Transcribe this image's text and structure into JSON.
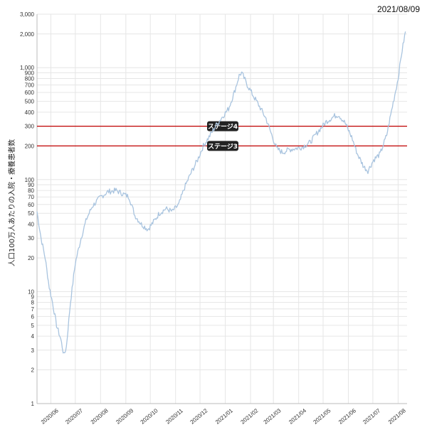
{
  "header": {
    "date": "2021/08/09"
  },
  "chart_data": {
    "type": "line",
    "ylabel": "人口100万人あたりの入院・療養患者数",
    "y_scale": "log",
    "ylim": [
      1,
      3000
    ],
    "y_ticks": [
      1,
      2,
      3,
      4,
      5,
      6,
      7,
      8,
      9,
      10,
      20,
      30,
      40,
      50,
      60,
      70,
      80,
      90,
      100,
      200,
      300,
      400,
      500,
      600,
      700,
      800,
      900,
      1000,
      2000,
      3000
    ],
    "y_tick_labels": [
      "1",
      "2",
      "3",
      "4",
      "5",
      "6",
      "7",
      "8",
      "9",
      "10",
      "20",
      "30",
      "40",
      "50",
      "60",
      "70",
      "80",
      "90",
      "100",
      "200",
      "300",
      "400",
      "500",
      "600",
      "700",
      "800",
      "900",
      "1,000",
      "2,000",
      "3,000"
    ],
    "x_range": [
      "2020-05-15",
      "2021-08-12"
    ],
    "x_ticks": [
      "2020-06-01",
      "2020-07-01",
      "2020-08-01",
      "2020-09-01",
      "2020-10-01",
      "2020-11-01",
      "2020-12-01",
      "2021-01-01",
      "2021-02-01",
      "2021-03-01",
      "2021-04-01",
      "2021-05-01",
      "2021-06-01",
      "2021-07-01",
      "2021-08-01"
    ],
    "x_tick_labels": [
      "2020/06",
      "2020/07",
      "2020/08",
      "2020/09",
      "2020/10",
      "2020/11",
      "2020/12",
      "2021/01",
      "2021/02",
      "2021/03",
      "2021/04",
      "2021/05",
      "2021/06",
      "2021/07",
      "2021/08"
    ],
    "reference_lines": [
      {
        "label": "ステージ4",
        "value": 300,
        "color": "#c00000"
      },
      {
        "label": "ステージ3",
        "value": 200,
        "color": "#c00000"
      }
    ],
    "series": [
      {
        "color": "#a9c4df",
        "points": [
          [
            "2020-05-15",
            52
          ],
          [
            "2020-05-20",
            30
          ],
          [
            "2020-05-25",
            20
          ],
          [
            "2020-05-30",
            11
          ],
          [
            "2020-06-03",
            8
          ],
          [
            "2020-06-08",
            5
          ],
          [
            "2020-06-13",
            3.8
          ],
          [
            "2020-06-17",
            2.7
          ],
          [
            "2020-06-20",
            3.2
          ],
          [
            "2020-06-25",
            8
          ],
          [
            "2020-07-01",
            18
          ],
          [
            "2020-07-08",
            30
          ],
          [
            "2020-07-15",
            45
          ],
          [
            "2020-07-22",
            58
          ],
          [
            "2020-08-01",
            70
          ],
          [
            "2020-08-10",
            78
          ],
          [
            "2020-08-20",
            80
          ],
          [
            "2020-08-28",
            75
          ],
          [
            "2020-09-05",
            70
          ],
          [
            "2020-09-12",
            48
          ],
          [
            "2020-09-20",
            40
          ],
          [
            "2020-09-28",
            36
          ],
          [
            "2020-10-05",
            42
          ],
          [
            "2020-10-12",
            50
          ],
          [
            "2020-10-20",
            55
          ],
          [
            "2020-10-28",
            52
          ],
          [
            "2020-11-05",
            60
          ],
          [
            "2020-11-12",
            85
          ],
          [
            "2020-11-20",
            115
          ],
          [
            "2020-11-28",
            150
          ],
          [
            "2020-12-05",
            200
          ],
          [
            "2020-12-12",
            240
          ],
          [
            "2020-12-20",
            300
          ],
          [
            "2020-12-28",
            360
          ],
          [
            "2021-01-05",
            430
          ],
          [
            "2021-01-12",
            600
          ],
          [
            "2021-01-18",
            850
          ],
          [
            "2021-01-21",
            900
          ],
          [
            "2021-01-28",
            700
          ],
          [
            "2021-02-05",
            550
          ],
          [
            "2021-02-12",
            450
          ],
          [
            "2021-02-20",
            350
          ],
          [
            "2021-02-27",
            250
          ],
          [
            "2021-03-05",
            190
          ],
          [
            "2021-03-12",
            175
          ],
          [
            "2021-03-20",
            185
          ],
          [
            "2021-03-28",
            190
          ],
          [
            "2021-04-05",
            195
          ],
          [
            "2021-04-15",
            215
          ],
          [
            "2021-04-25",
            270
          ],
          [
            "2021-05-05",
            330
          ],
          [
            "2021-05-15",
            370
          ],
          [
            "2021-05-20",
            380
          ],
          [
            "2021-05-28",
            320
          ],
          [
            "2021-06-05",
            240
          ],
          [
            "2021-06-12",
            170
          ],
          [
            "2021-06-20",
            130
          ],
          [
            "2021-06-25",
            120
          ],
          [
            "2021-07-02",
            150
          ],
          [
            "2021-07-10",
            170
          ],
          [
            "2021-07-18",
            250
          ],
          [
            "2021-07-25",
            450
          ],
          [
            "2021-08-01",
            800
          ],
          [
            "2021-08-05",
            1300
          ],
          [
            "2021-08-10",
            2100
          ]
        ]
      }
    ]
  }
}
